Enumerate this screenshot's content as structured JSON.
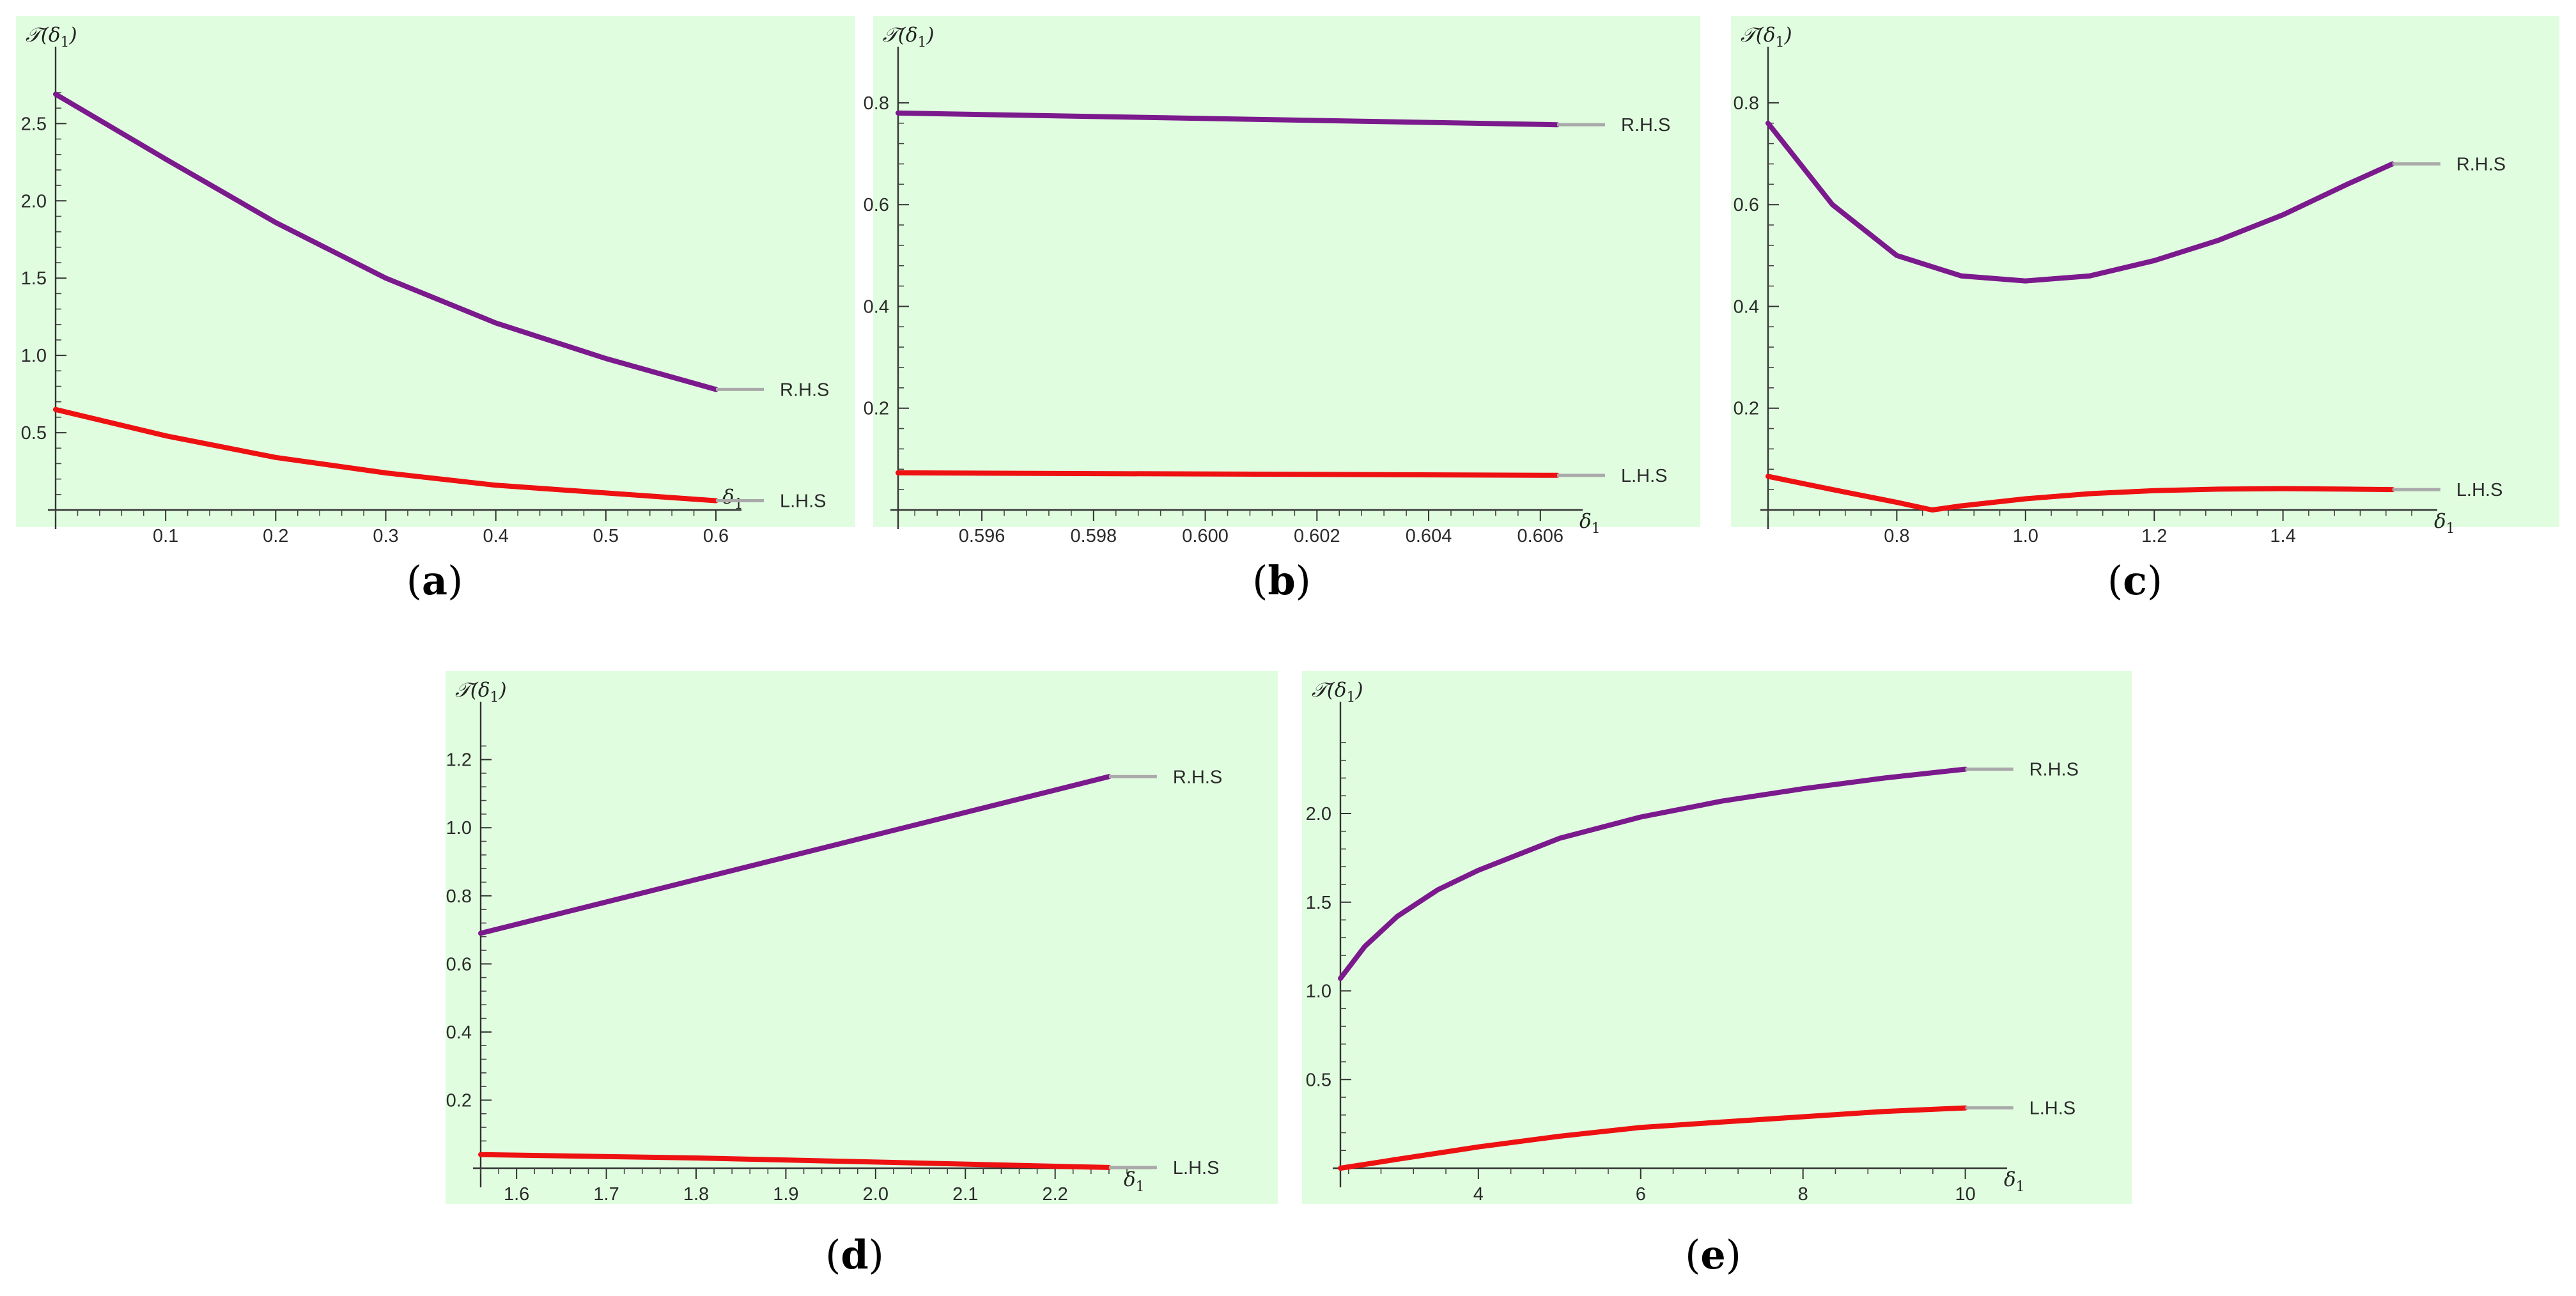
{
  "series_colors": {
    "R.H.S": "#7b1a8c",
    "L.H.S": "#ee1111"
  },
  "chart_data": [
    {
      "panel": "a",
      "caption": "(a)",
      "type": "line",
      "ylabel_main": "𝒯(δ",
      "ylabel_sub": "1",
      "ylabel_end": ")",
      "xlabel_main": "δ",
      "xlabel_sub": "1",
      "xlim": [
        0.0,
        0.6
      ],
      "ylim": [
        0.0,
        2.7
      ],
      "xticks": [
        0.1,
        0.2,
        0.3,
        0.4,
        0.5,
        0.6
      ],
      "xtick_labels": [
        "0.1",
        "0.2",
        "0.3",
        "0.4",
        "0.5",
        "0.6"
      ],
      "yticks": [
        0.5,
        1.0,
        1.5,
        2.0,
        2.5
      ],
      "ytick_labels": [
        "0.5",
        "1.0",
        "1.5",
        "2.0",
        "2.5"
      ],
      "series": [
        {
          "name": "R.H.S",
          "x": [
            0.0,
            0.1,
            0.2,
            0.3,
            0.4,
            0.5,
            0.6
          ],
          "y": [
            2.69,
            2.27,
            1.86,
            1.5,
            1.21,
            0.98,
            0.78
          ]
        },
        {
          "name": "L.H.S",
          "x": [
            0.0,
            0.1,
            0.2,
            0.3,
            0.4,
            0.5,
            0.6
          ],
          "y": [
            0.65,
            0.48,
            0.34,
            0.24,
            0.16,
            0.11,
            0.06
          ]
        }
      ]
    },
    {
      "panel": "b",
      "caption": "(b)",
      "type": "line",
      "ylabel_main": "𝒯(δ",
      "ylabel_sub": "1",
      "ylabel_end": ")",
      "xlabel_main": "δ",
      "xlabel_sub": "1",
      "xlim": [
        0.5945,
        0.6063
      ],
      "ylim": [
        0.0,
        0.82
      ],
      "xticks": [
        0.596,
        0.598,
        0.6,
        0.602,
        0.604,
        0.606
      ],
      "xtick_labels": [
        "0.596",
        "0.598",
        "0.600",
        "0.602",
        "0.604",
        "0.606"
      ],
      "yticks": [
        0.2,
        0.4,
        0.6,
        0.8
      ],
      "ytick_labels": [
        "0.2",
        "0.4",
        "0.6",
        "0.8"
      ],
      "series": [
        {
          "name": "R.H.S",
          "x": [
            0.5945,
            0.6063
          ],
          "y": [
            0.78,
            0.757
          ]
        },
        {
          "name": "L.H.S",
          "x": [
            0.5945,
            0.6063
          ],
          "y": [
            0.073,
            0.068
          ]
        }
      ]
    },
    {
      "panel": "c",
      "caption": "(c)",
      "type": "line",
      "ylabel_main": "𝒯(δ",
      "ylabel_sub": "1",
      "ylabel_end": ")",
      "xlabel_main": "δ",
      "xlabel_sub": "1",
      "xlim": [
        0.6,
        1.6
      ],
      "ylim": [
        0.0,
        0.82
      ],
      "xticks": [
        0.8,
        1.0,
        1.2,
        1.4
      ],
      "xtick_labels": [
        "0.8",
        "1.0",
        "1.2",
        "1.4"
      ],
      "yticks": [
        0.2,
        0.4,
        0.6,
        0.8
      ],
      "ytick_labels": [
        "0.2",
        "0.4",
        "0.6",
        "0.8"
      ],
      "series": [
        {
          "name": "R.H.S",
          "x": [
            0.6,
            0.7,
            0.8,
            0.9,
            1.0,
            1.1,
            1.2,
            1.3,
            1.4,
            1.5,
            1.57
          ],
          "y": [
            0.76,
            0.6,
            0.5,
            0.46,
            0.45,
            0.46,
            0.49,
            0.53,
            0.58,
            0.64,
            0.68
          ]
        },
        {
          "name": "L.H.S",
          "x": [
            0.6,
            0.7,
            0.8,
            0.855,
            0.9,
            1.0,
            1.1,
            1.2,
            1.3,
            1.4,
            1.5,
            1.57
          ],
          "y": [
            0.066,
            0.04,
            0.015,
            0.0,
            0.008,
            0.022,
            0.032,
            0.038,
            0.041,
            0.042,
            0.041,
            0.04
          ]
        }
      ]
    },
    {
      "panel": "d",
      "caption": "(d)",
      "type": "line",
      "ylabel_main": "𝒯(δ",
      "ylabel_sub": "1",
      "ylabel_end": ")",
      "xlabel_main": "δ",
      "xlabel_sub": "1",
      "xlim": [
        1.56,
        2.28
      ],
      "ylim": [
        0.0,
        1.25
      ],
      "xticks": [
        1.6,
        1.7,
        1.8,
        1.9,
        2.0,
        2.1,
        2.2
      ],
      "xtick_labels": [
        "1.6",
        "1.7",
        "1.8",
        "1.9",
        "2.0",
        "2.1",
        "2.2"
      ],
      "yticks": [
        0.2,
        0.4,
        0.6,
        0.8,
        1.0,
        1.2
      ],
      "ytick_labels": [
        "0.2",
        "0.4",
        "0.6",
        "0.8",
        "1.0",
        "1.2"
      ],
      "series": [
        {
          "name": "R.H.S",
          "x": [
            1.56,
            2.26
          ],
          "y": [
            0.69,
            1.15
          ]
        },
        {
          "name": "L.H.S",
          "x": [
            1.56,
            1.8,
            2.0,
            2.26
          ],
          "y": [
            0.04,
            0.03,
            0.018,
            0.002
          ]
        }
      ]
    },
    {
      "panel": "e",
      "caption": "(e)",
      "type": "line",
      "ylabel_main": "𝒯(δ",
      "ylabel_sub": "1",
      "ylabel_end": ")",
      "xlabel_main": "δ",
      "xlabel_sub": "1",
      "xlim": [
        2.3,
        10.2
      ],
      "ylim": [
        0.0,
        2.4
      ],
      "xticks": [
        4,
        6,
        8,
        10
      ],
      "xtick_labels": [
        "4",
        "6",
        "8",
        "10"
      ],
      "yticks": [
        0.5,
        1.0,
        1.5,
        2.0
      ],
      "ytick_labels": [
        "0.5",
        "1.0",
        "1.5",
        "2.0"
      ],
      "series": [
        {
          "name": "R.H.S",
          "x": [
            2.3,
            2.6,
            3.0,
            3.5,
            4.0,
            5.0,
            6.0,
            7.0,
            8.0,
            9.0,
            10.0
          ],
          "y": [
            1.07,
            1.25,
            1.42,
            1.57,
            1.68,
            1.86,
            1.98,
            2.07,
            2.14,
            2.2,
            2.25
          ]
        },
        {
          "name": "L.H.S",
          "x": [
            2.3,
            3.0,
            4.0,
            5.0,
            6.0,
            7.0,
            8.0,
            9.0,
            10.0
          ],
          "y": [
            0.0,
            0.05,
            0.12,
            0.18,
            0.23,
            0.26,
            0.29,
            0.32,
            0.34
          ]
        }
      ]
    }
  ]
}
